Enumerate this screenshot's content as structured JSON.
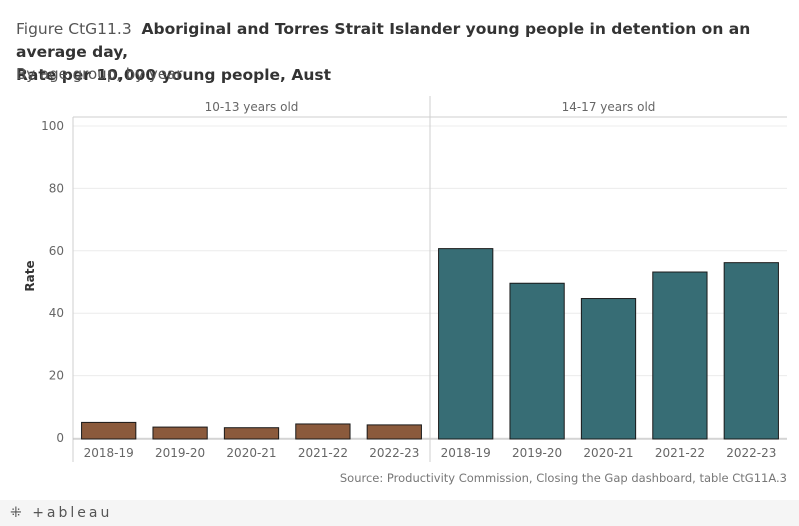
{
  "header": {
    "figure_label": "Figure CtG11.3",
    "title_line1": "Aboriginal and Torres Strait Islander young people in detention on an average day,",
    "title_line2": "Rate per 10,000 young people, Aust",
    "subtitle": "By age group, by year"
  },
  "source": "Source: Productivity Commission, Closing the Gap dashboard, table CtG11A.3",
  "footer": {
    "logo_text": "+ableau",
    "logo_icon": "tableau-plus-icon"
  },
  "colors": {
    "brown": "#8B5A3C",
    "teal": "#376D75",
    "grid": "#ececec",
    "axis": "#cfcfcf"
  },
  "chart_data": {
    "type": "bar",
    "ylabel": "Rate",
    "ylim": [
      0,
      100
    ],
    "yticks": [
      0,
      20,
      40,
      60,
      80,
      100
    ],
    "grid": true,
    "panels": [
      {
        "name": "10-13 years old",
        "color": "#8B5A3C",
        "categories": [
          "2018-19",
          "2019-20",
          "2020-21",
          "2021-22",
          "2022-23"
        ],
        "values": [
          5.0,
          3.5,
          3.3,
          4.5,
          4.2
        ]
      },
      {
        "name": "14-17 years old",
        "color": "#376D75",
        "categories": [
          "2018-19",
          "2019-20",
          "2020-21",
          "2021-22",
          "2022-23"
        ],
        "values": [
          60.7,
          49.6,
          44.7,
          53.2,
          56.2
        ]
      }
    ]
  }
}
